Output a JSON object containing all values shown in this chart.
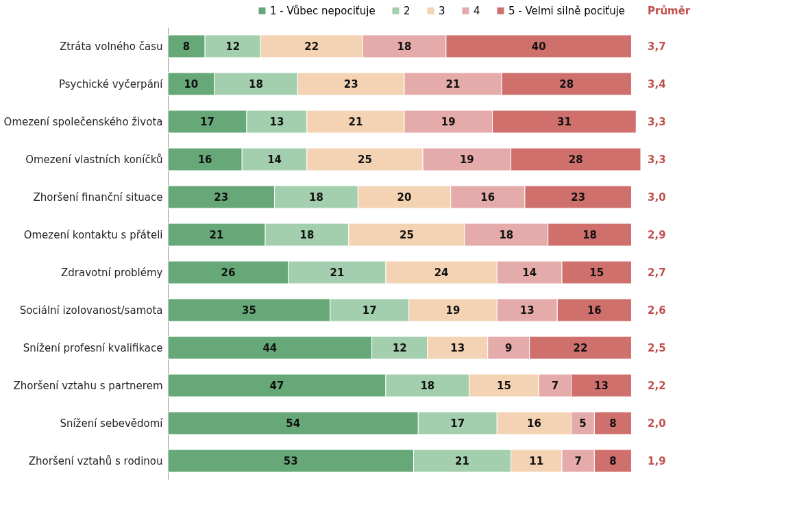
{
  "chart_data": {
    "type": "bar",
    "orientation": "horizontal",
    "stacked": true,
    "data_labels": true,
    "legend": "top right",
    "categories": [
      "Ztráta volného času",
      "Psychické vyčerpání",
      "Omezení společenského života",
      "Omezení vlastních koníčků",
      "Zhoršení finanční situace",
      "Omezení kontaktu s přáteli",
      "Zdravotní problémy",
      "Sociální izolovanost/samota",
      "Snížení profesní kvalifikace",
      "Zhoršení vztahu s partnerem",
      "Snížení sebevědomí",
      "Zhoršení vztahů s rodinou"
    ],
    "series": [
      {
        "name": "1 - Vůbec nepociťuje",
        "color": "#66a877",
        "values": [
          8,
          10,
          17,
          16,
          23,
          21,
          26,
          35,
          44,
          47,
          54,
          53
        ]
      },
      {
        "name": "2",
        "color": "#a3cfae",
        "values": [
          12,
          18,
          13,
          14,
          18,
          18,
          21,
          17,
          12,
          18,
          17,
          21
        ]
      },
      {
        "name": "3",
        "color": "#f3d3b3",
        "values": [
          22,
          23,
          21,
          25,
          20,
          25,
          24,
          19,
          13,
          15,
          16,
          11
        ]
      },
      {
        "name": "4",
        "color": "#e5aaaa",
        "values": [
          18,
          21,
          19,
          19,
          16,
          18,
          14,
          13,
          9,
          7,
          5,
          7
        ]
      },
      {
        "name": "5 - Velmi silně pociťuje",
        "color": "#d0706d",
        "values": [
          40,
          28,
          31,
          28,
          23,
          18,
          15,
          16,
          22,
          13,
          8,
          8
        ]
      }
    ],
    "annotations": [
      "Průměr",
      "3,7",
      "3,4",
      "3,3",
      "3,3",
      "3,0",
      "2,9",
      "2,7",
      "2,6",
      "2,5",
      "2,2",
      "2,0",
      "1,9"
    ]
  }
}
